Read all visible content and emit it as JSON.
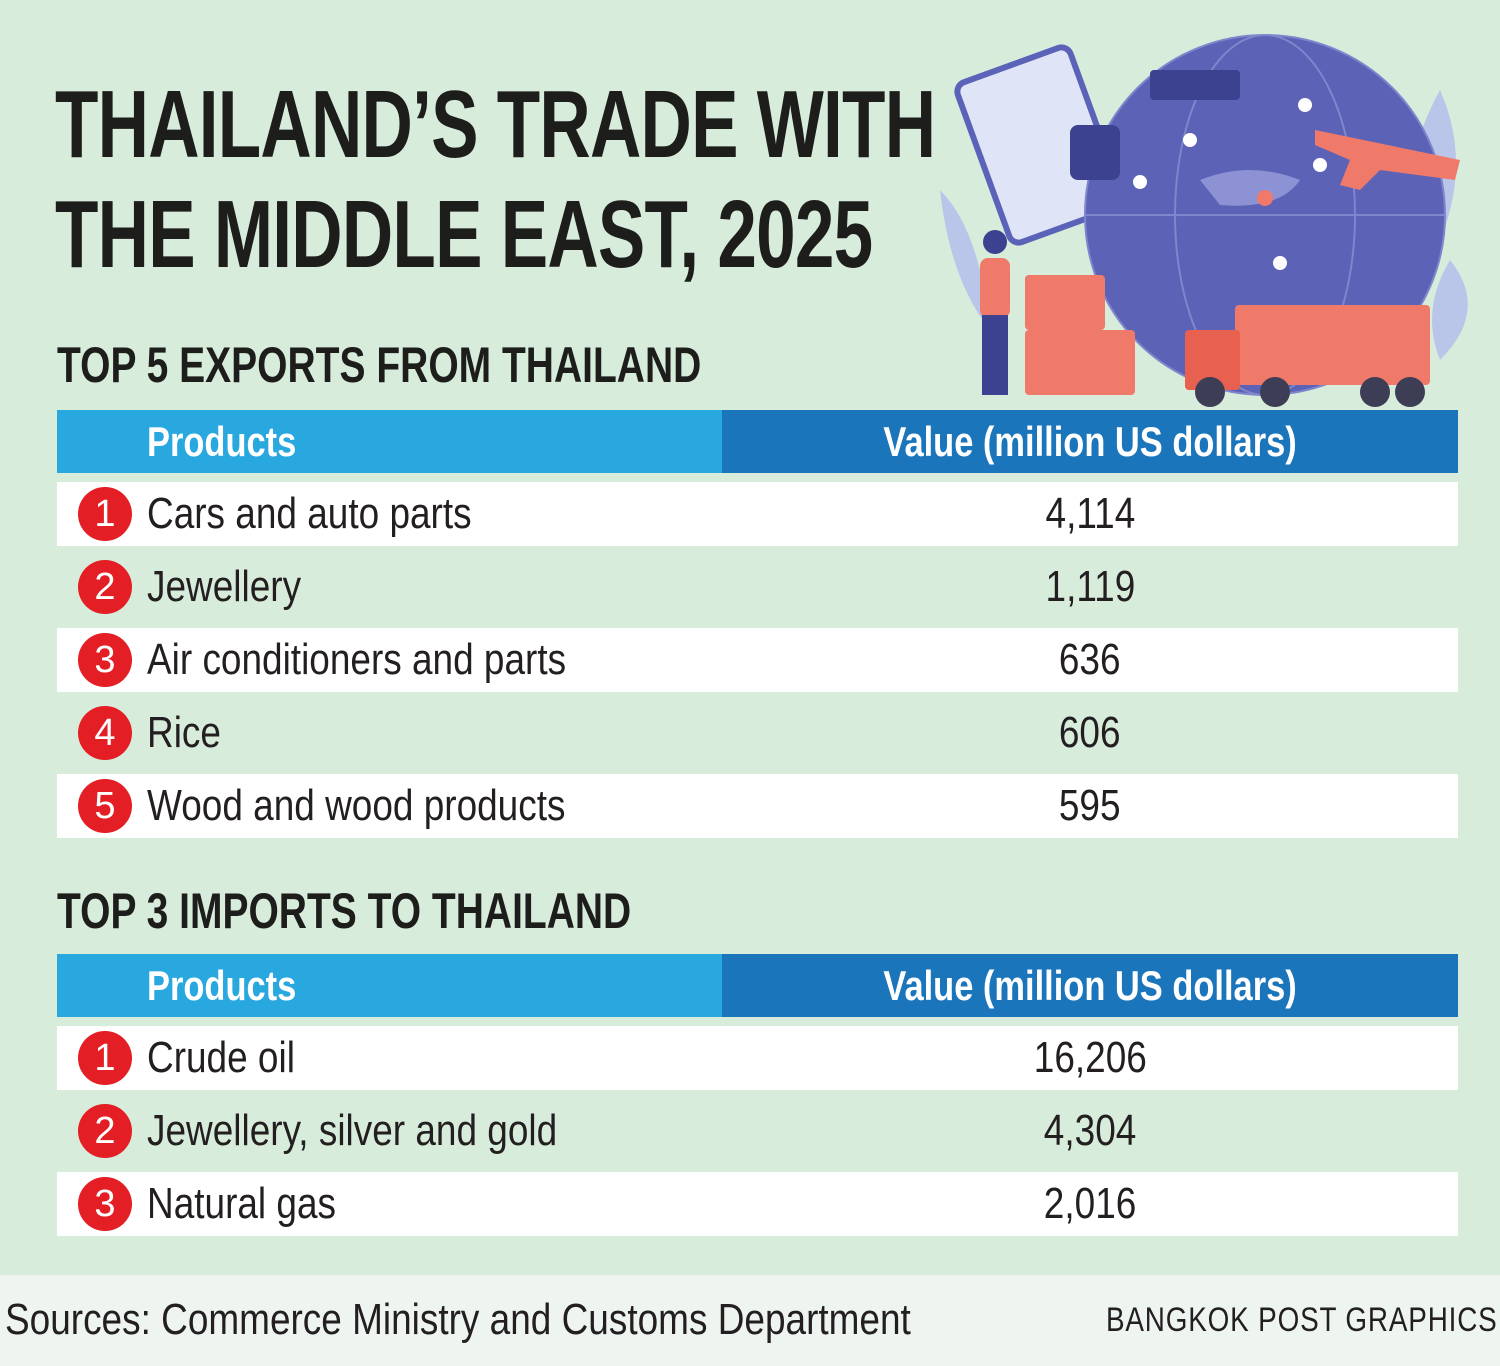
{
  "title": [
    "THAILAND’S TRADE WITH",
    "THE MIDDLE EAST, 2025"
  ],
  "exports": {
    "heading": "TOP 5 EXPORTS FROM THAILAND",
    "columns": [
      "Products",
      "Value (million US dollars)"
    ],
    "rows": [
      {
        "rank": 1,
        "product": "Cars and auto parts",
        "value": "4,114"
      },
      {
        "rank": 2,
        "product": "Jewellery",
        "value": "1,119"
      },
      {
        "rank": 3,
        "product": "Air conditioners and parts",
        "value": "636"
      },
      {
        "rank": 4,
        "product": "Rice",
        "value": "606"
      },
      {
        "rank": 5,
        "product": "Wood and wood products",
        "value": "595"
      }
    ]
  },
  "imports": {
    "heading": "TOP 3 IMPORTS TO THAILAND",
    "columns": [
      "Products",
      "Value (million US dollars)"
    ],
    "rows": [
      {
        "rank": 1,
        "product": "Crude oil",
        "value": "16,206"
      },
      {
        "rank": 2,
        "product": "Jewellery, silver and gold",
        "value": "4,304"
      },
      {
        "rank": 3,
        "product": "Natural gas",
        "value": "2,016"
      }
    ]
  },
  "footer": {
    "sources": "Sources: Commerce Ministry and Customs Department",
    "credit": "BANGKOK POST GRAPHICS"
  }
}
